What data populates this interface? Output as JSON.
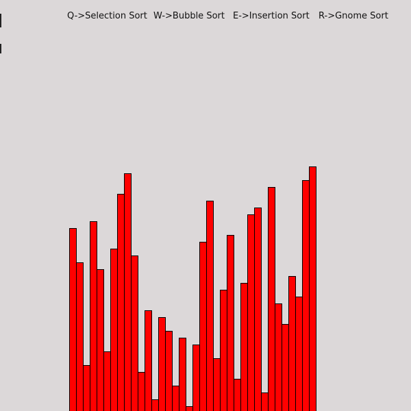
{
  "hints": {
    "selection": "Q->Selection Sort",
    "bubble": "W->Bubble Sort",
    "insertion": "E->Insertion Sort",
    "gnome": "R->Gnome Sort"
  },
  "colors": {
    "background": "#dcd8d9",
    "bar_fill": "#ff0000",
    "bar_stroke": "#000000",
    "text": "#111111"
  },
  "array": {
    "max_value": 600,
    "values": [
      267,
      217,
      67,
      277,
      207,
      87,
      237,
      317,
      347,
      227,
      57,
      147,
      17,
      137,
      117,
      37,
      107,
      7,
      97,
      247,
      307,
      77,
      177,
      257,
      47,
      187,
      287,
      297,
      27,
      327,
      157,
      127,
      197,
      167,
      337,
      357
    ]
  }
}
